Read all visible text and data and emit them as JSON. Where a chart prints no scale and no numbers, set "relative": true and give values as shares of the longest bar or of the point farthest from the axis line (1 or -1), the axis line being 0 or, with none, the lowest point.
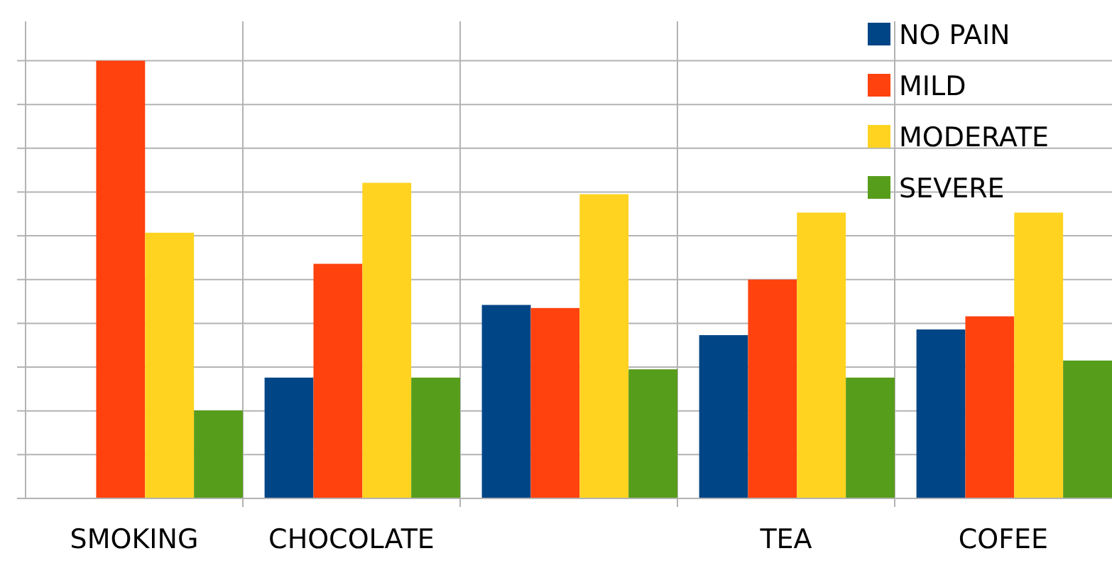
{
  "chart_data": {
    "type": "bar",
    "relative": true,
    "categories": [
      "SMOKING",
      "CHOCOLATE",
      null,
      "TEA",
      "COFEE"
    ],
    "series": [
      {
        "name": "NO PAIN",
        "color": "#004586",
        "values": [
          0,
          0.276,
          0.442,
          0.373,
          0.386
        ]
      },
      {
        "name": "MILD",
        "color": "#ff420e",
        "values": [
          1,
          0.536,
          0.435,
          0.5,
          0.416
        ]
      },
      {
        "name": "MODERATE",
        "color": "#ffd320",
        "values": [
          0.607,
          0.721,
          0.695,
          0.653,
          0.653
        ]
      },
      {
        "name": "SEVERE",
        "color": "#579d1c",
        "values": [
          0.201,
          0.276,
          0.295,
          0.276,
          0.315
        ]
      }
    ],
    "grid": true,
    "legend": "top right"
  }
}
